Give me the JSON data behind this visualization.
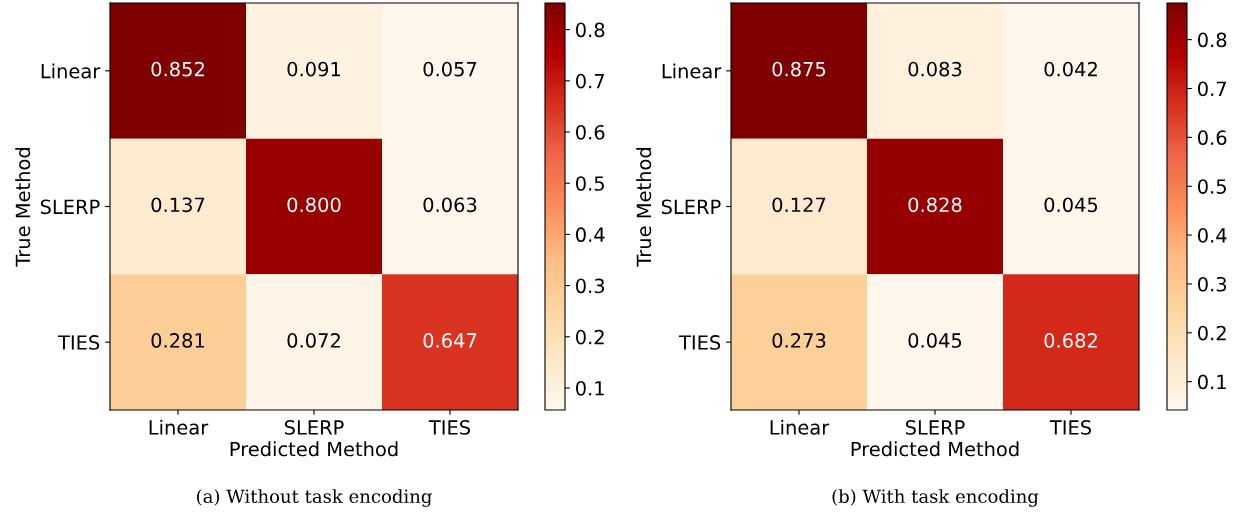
{
  "chart_data": [
    {
      "type": "heatmap",
      "categories": [
        "Linear",
        "SLERP",
        "TIES"
      ],
      "y_categories": [
        "Linear",
        "SLERP",
        "TIES"
      ],
      "xlabel": "Predicted Method",
      "ylabel": "True Method",
      "cells": [
        [
          0.852,
          0.091,
          0.057
        ],
        [
          0.137,
          0.8,
          0.063
        ],
        [
          0.281,
          0.072,
          0.647
        ]
      ],
      "cell_labels": [
        [
          "0.852",
          "0.091",
          "0.057"
        ],
        [
          "0.137",
          "0.800",
          "0.063"
        ],
        [
          "0.281",
          "0.072",
          "0.647"
        ]
      ],
      "clim": [
        0.057,
        0.852
      ],
      "cticks": [
        0.1,
        0.2,
        0.3,
        0.4,
        0.5,
        0.6,
        0.7,
        0.8
      ],
      "data_labels": true,
      "annotations": [
        "(a) Without task encoding"
      ]
    },
    {
      "type": "heatmap",
      "categories": [
        "Linear",
        "SLERP",
        "TIES"
      ],
      "y_categories": [
        "Linear",
        "SLERP",
        "TIES"
      ],
      "xlabel": "Predicted Method",
      "ylabel": "True Method",
      "cells": [
        [
          0.875,
          0.083,
          0.042
        ],
        [
          0.127,
          0.828,
          0.045
        ],
        [
          0.273,
          0.045,
          0.682
        ]
      ],
      "clim": [
        0.042,
        0.875
      ],
      "cticks": [
        0.1,
        0.2,
        0.3,
        0.4,
        0.5,
        0.6,
        0.7,
        0.8
      ],
      "data_labels": true,
      "annotations": [
        "(b) With task encoding"
      ]
    }
  ]
}
